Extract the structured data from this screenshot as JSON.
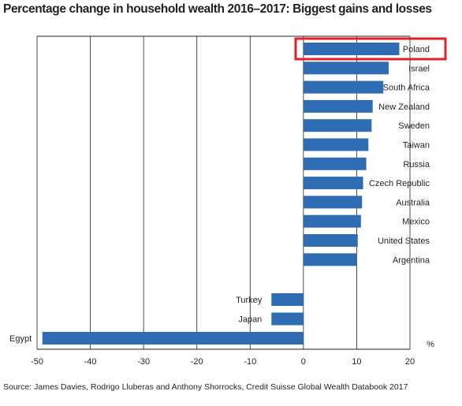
{
  "chart_data": {
    "type": "bar",
    "orientation": "horizontal",
    "title": "Percentage change in household wealth 2016–2017: Biggest gains and losses",
    "source": "Source: James Davies, Rodrigo Lluberas and Anthony Shorrocks, Credit Suisse Global Wealth Databook 2017",
    "unit_label": "%",
    "xlim": [
      -50,
      20
    ],
    "xticks": [
      "-50",
      "-40",
      "-30",
      "-20",
      "-10",
      "0",
      "10",
      "20"
    ],
    "grid": "vertical",
    "bar_color": "#2e6db4",
    "highlight_color": "#e3202a",
    "highlight": "Poland",
    "categories": [
      "Poland",
      "Israel",
      "South Africa",
      "New Zealand",
      "Sweden",
      "Taiwan",
      "Russia",
      "Czech Republic",
      "Australia",
      "Mexico",
      "United States",
      "Argentina",
      "Turkey",
      "Japan",
      "Egypt"
    ],
    "values": [
      18,
      16,
      15,
      13,
      12.8,
      12.2,
      11.8,
      11.2,
      11,
      10.8,
      10.2,
      10,
      -6,
      -6,
      -49
    ]
  }
}
